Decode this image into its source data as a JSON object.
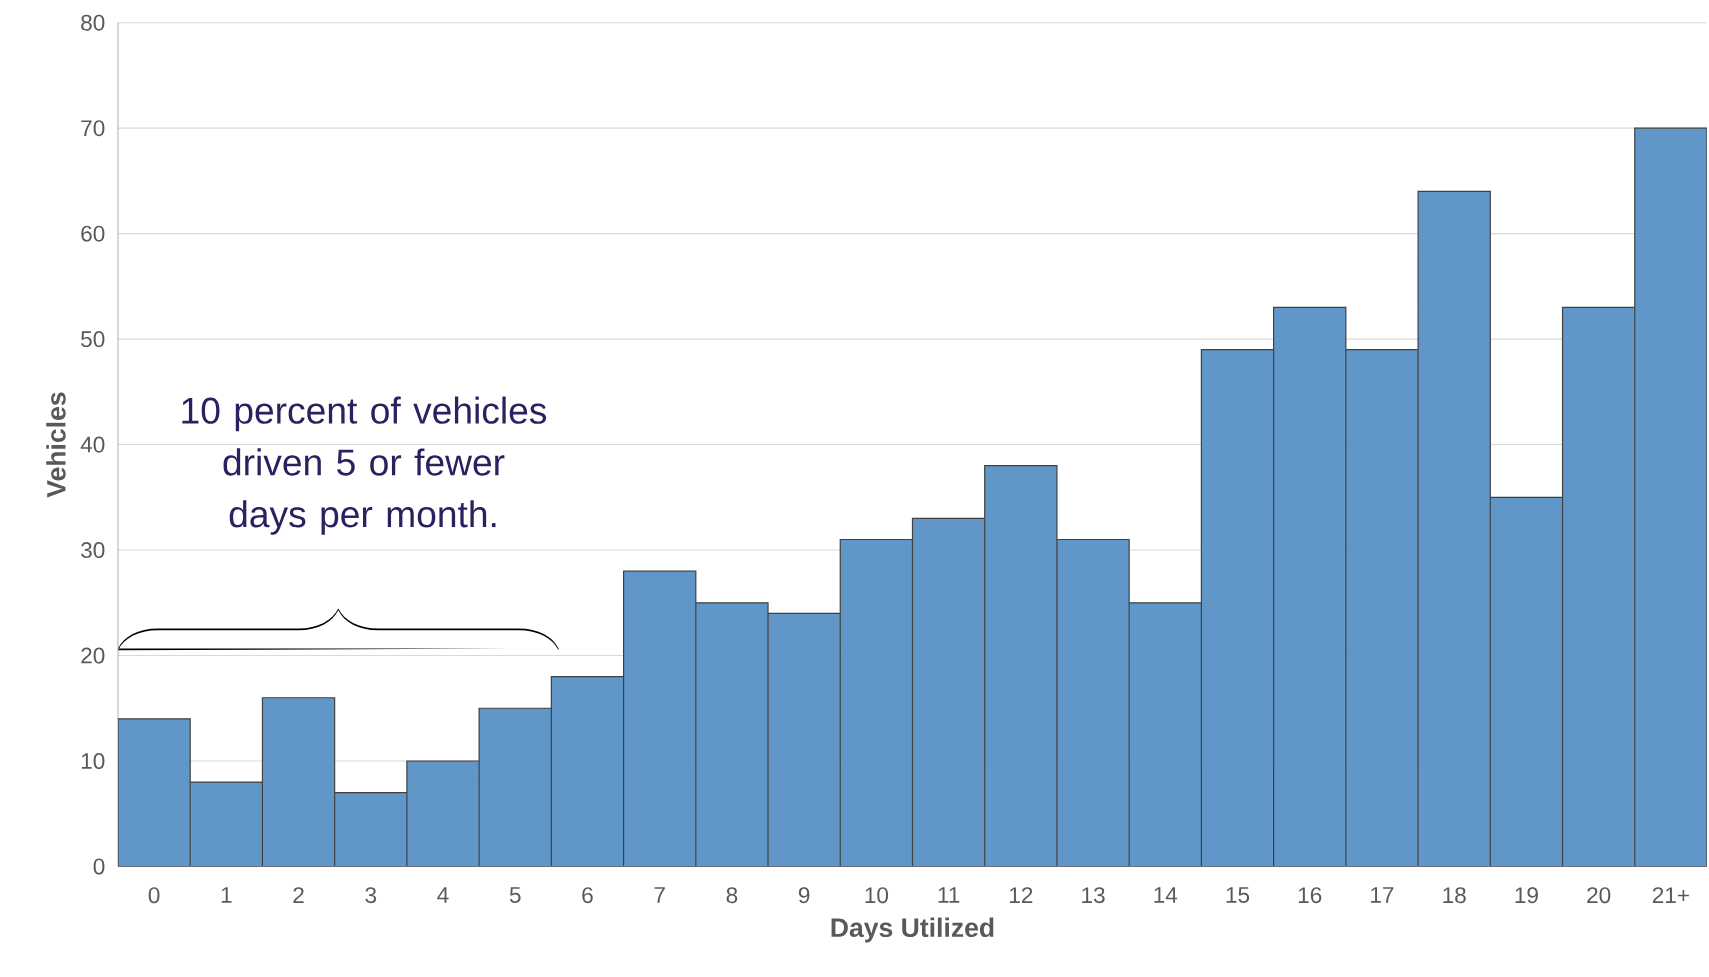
{
  "chart_data": {
    "type": "bar",
    "categories": [
      "0",
      "1",
      "2",
      "3",
      "4",
      "5",
      "6",
      "7",
      "8",
      "9",
      "10",
      "11",
      "12",
      "13",
      "14",
      "15",
      "16",
      "17",
      "18",
      "19",
      "20",
      "21+"
    ],
    "values": [
      14,
      8,
      16,
      7,
      10,
      15,
      18,
      28,
      25,
      24,
      31,
      33,
      38,
      31,
      25,
      49,
      53,
      49,
      64,
      35,
      53,
      70
    ],
    "color": "#6097c8",
    "xlabel": "Days Utilized",
    "ylabel": "Vehicles",
    "ylim": [
      0,
      80
    ],
    "yticks": [
      0,
      10,
      20,
      30,
      40,
      50,
      60,
      70,
      80
    ],
    "grid": "y",
    "annotations": [
      "10 percent of vehicles driven 5 or fewer days per month."
    ]
  }
}
